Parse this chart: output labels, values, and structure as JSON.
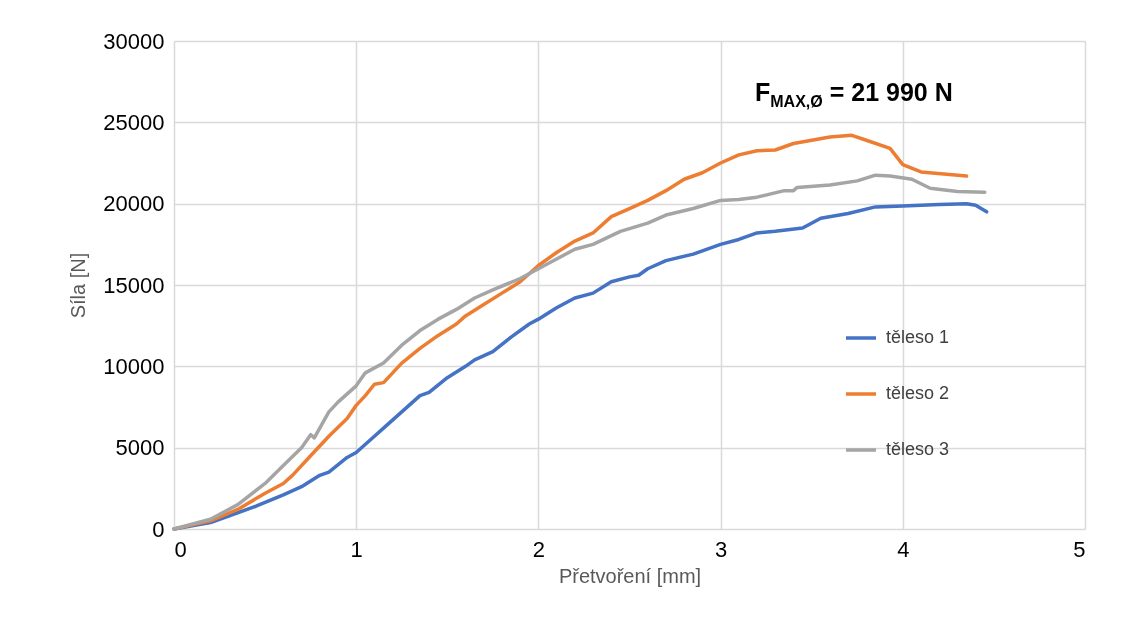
{
  "chart_data": {
    "type": "line",
    "xlabel": "Přetvoření [mm]",
    "ylabel": "Síla [N]",
    "xlim": [
      0,
      5
    ],
    "xticks": [
      0,
      1,
      2,
      3,
      4,
      5
    ],
    "ylim": [
      0,
      30000
    ],
    "yticks": [
      0,
      5000,
      10000,
      15000,
      20000,
      25000,
      30000
    ],
    "grid": true,
    "legend": "right",
    "marker": "none",
    "line_style": "solid",
    "annotations": [
      "F$_{MAX,Ø}$ = 21 990 N"
    ],
    "series": [
      {
        "name": "těleso 1",
        "color": "#4472c4",
        "x": [
          0,
          0.2,
          0.3,
          0.45,
          0.6,
          0.7,
          0.8,
          0.85,
          0.95,
          1.0,
          1.1,
          1.15,
          1.25,
          1.35,
          1.4,
          1.5,
          1.6,
          1.65,
          1.75,
          1.85,
          1.95,
          2.0,
          2.1,
          2.2,
          2.3,
          2.4,
          2.5,
          2.55,
          2.6,
          2.7,
          2.85,
          3.0,
          3.1,
          3.2,
          3.3,
          3.45,
          3.55,
          3.7,
          3.85,
          4.0,
          4.2,
          4.35,
          4.4,
          4.46
        ],
        "values": [
          0,
          400,
          800,
          1400,
          2100,
          2600,
          3300,
          3500,
          4400,
          4700,
          5700,
          6200,
          7200,
          8200,
          8400,
          9300,
          10000,
          10400,
          10900,
          11800,
          12600,
          12900,
          13600,
          14200,
          14500,
          15200,
          15500,
          15600,
          16000,
          16500,
          16900,
          17500,
          17800,
          18200,
          18300,
          18500,
          19100,
          19400,
          19800,
          19850,
          19950,
          20000,
          19900,
          19500
        ]
      },
      {
        "name": "těleso 2",
        "color": "#ed7d31",
        "x": [
          0,
          0.2,
          0.35,
          0.5,
          0.6,
          0.65,
          0.75,
          0.85,
          0.95,
          1.0,
          1.05,
          1.1,
          1.15,
          1.25,
          1.35,
          1.45,
          1.55,
          1.6,
          1.7,
          1.8,
          1.9,
          2.0,
          2.1,
          2.2,
          2.3,
          2.4,
          2.5,
          2.6,
          2.7,
          2.8,
          2.9,
          3.0,
          3.1,
          3.2,
          3.3,
          3.4,
          3.5,
          3.6,
          3.72,
          3.8,
          3.93,
          4.0,
          4.1,
          4.35
        ],
        "values": [
          0,
          500,
          1200,
          2200,
          2800,
          3300,
          4500,
          5700,
          6800,
          7600,
          8200,
          8900,
          9000,
          10200,
          11100,
          11900,
          12600,
          13100,
          13800,
          14500,
          15200,
          16200,
          17000,
          17700,
          18200,
          19200,
          19700,
          20200,
          20800,
          21500,
          21900,
          22500,
          23000,
          23250,
          23300,
          23700,
          23900,
          24100,
          24200,
          23900,
          23400,
          22400,
          21950,
          21700
        ]
      },
      {
        "name": "těleso 3",
        "color": "#a5a5a5",
        "x": [
          0,
          0.2,
          0.35,
          0.5,
          0.6,
          0.7,
          0.75,
          0.77,
          0.85,
          0.9,
          1.0,
          1.05,
          1.15,
          1.25,
          1.35,
          1.45,
          1.55,
          1.65,
          1.75,
          1.9,
          2.0,
          2.1,
          2.2,
          2.3,
          2.45,
          2.6,
          2.7,
          2.85,
          3.0,
          3.1,
          3.2,
          3.35,
          3.4,
          3.42,
          3.6,
          3.75,
          3.85,
          3.93,
          4.05,
          4.15,
          4.3,
          4.45
        ],
        "values": [
          0,
          600,
          1500,
          2800,
          3900,
          5000,
          5800,
          5600,
          7200,
          7800,
          8800,
          9600,
          10200,
          11300,
          12200,
          12900,
          13500,
          14200,
          14700,
          15400,
          16000,
          16600,
          17200,
          17500,
          18300,
          18800,
          19300,
          19700,
          20200,
          20250,
          20400,
          20800,
          20800,
          21000,
          21150,
          21400,
          21750,
          21700,
          21500,
          20950,
          20750,
          20700
        ]
      }
    ]
  }
}
